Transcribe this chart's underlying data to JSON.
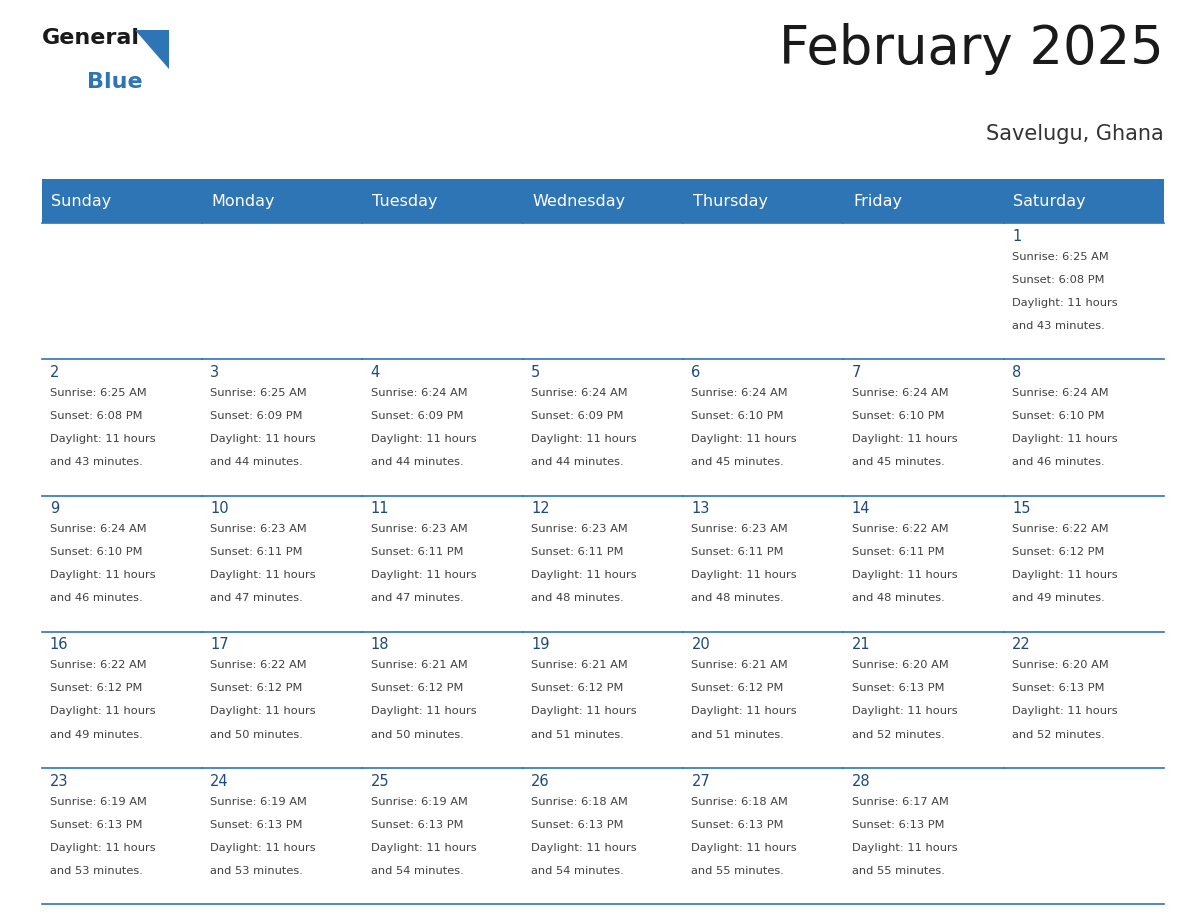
{
  "title": "February 2025",
  "subtitle": "Savelugu, Ghana",
  "header_bg": "#2E75B6",
  "header_text_color": "#FFFFFF",
  "days_of_week": [
    "Sunday",
    "Monday",
    "Tuesday",
    "Wednesday",
    "Thursday",
    "Friday",
    "Saturday"
  ],
  "day_number_color": "#1F497D",
  "text_color": "#404040",
  "line_color": "#2E75B6",
  "calendar_data": [
    [
      null,
      null,
      null,
      null,
      null,
      null,
      {
        "day": 1,
        "sunrise": "6:25 AM",
        "sunset": "6:08 PM",
        "daylight": "11 hours and 43 minutes"
      }
    ],
    [
      {
        "day": 2,
        "sunrise": "6:25 AM",
        "sunset": "6:08 PM",
        "daylight": "11 hours and 43 minutes"
      },
      {
        "day": 3,
        "sunrise": "6:25 AM",
        "sunset": "6:09 PM",
        "daylight": "11 hours and 44 minutes"
      },
      {
        "day": 4,
        "sunrise": "6:24 AM",
        "sunset": "6:09 PM",
        "daylight": "11 hours and 44 minutes"
      },
      {
        "day": 5,
        "sunrise": "6:24 AM",
        "sunset": "6:09 PM",
        "daylight": "11 hours and 44 minutes"
      },
      {
        "day": 6,
        "sunrise": "6:24 AM",
        "sunset": "6:10 PM",
        "daylight": "11 hours and 45 minutes"
      },
      {
        "day": 7,
        "sunrise": "6:24 AM",
        "sunset": "6:10 PM",
        "daylight": "11 hours and 45 minutes"
      },
      {
        "day": 8,
        "sunrise": "6:24 AM",
        "sunset": "6:10 PM",
        "daylight": "11 hours and 46 minutes"
      }
    ],
    [
      {
        "day": 9,
        "sunrise": "6:24 AM",
        "sunset": "6:10 PM",
        "daylight": "11 hours and 46 minutes"
      },
      {
        "day": 10,
        "sunrise": "6:23 AM",
        "sunset": "6:11 PM",
        "daylight": "11 hours and 47 minutes"
      },
      {
        "day": 11,
        "sunrise": "6:23 AM",
        "sunset": "6:11 PM",
        "daylight": "11 hours and 47 minutes"
      },
      {
        "day": 12,
        "sunrise": "6:23 AM",
        "sunset": "6:11 PM",
        "daylight": "11 hours and 48 minutes"
      },
      {
        "day": 13,
        "sunrise": "6:23 AM",
        "sunset": "6:11 PM",
        "daylight": "11 hours and 48 minutes"
      },
      {
        "day": 14,
        "sunrise": "6:22 AM",
        "sunset": "6:11 PM",
        "daylight": "11 hours and 48 minutes"
      },
      {
        "day": 15,
        "sunrise": "6:22 AM",
        "sunset": "6:12 PM",
        "daylight": "11 hours and 49 minutes"
      }
    ],
    [
      {
        "day": 16,
        "sunrise": "6:22 AM",
        "sunset": "6:12 PM",
        "daylight": "11 hours and 49 minutes"
      },
      {
        "day": 17,
        "sunrise": "6:22 AM",
        "sunset": "6:12 PM",
        "daylight": "11 hours and 50 minutes"
      },
      {
        "day": 18,
        "sunrise": "6:21 AM",
        "sunset": "6:12 PM",
        "daylight": "11 hours and 50 minutes"
      },
      {
        "day": 19,
        "sunrise": "6:21 AM",
        "sunset": "6:12 PM",
        "daylight": "11 hours and 51 minutes"
      },
      {
        "day": 20,
        "sunrise": "6:21 AM",
        "sunset": "6:12 PM",
        "daylight": "11 hours and 51 minutes"
      },
      {
        "day": 21,
        "sunrise": "6:20 AM",
        "sunset": "6:13 PM",
        "daylight": "11 hours and 52 minutes"
      },
      {
        "day": 22,
        "sunrise": "6:20 AM",
        "sunset": "6:13 PM",
        "daylight": "11 hours and 52 minutes"
      }
    ],
    [
      {
        "day": 23,
        "sunrise": "6:19 AM",
        "sunset": "6:13 PM",
        "daylight": "11 hours and 53 minutes"
      },
      {
        "day": 24,
        "sunrise": "6:19 AM",
        "sunset": "6:13 PM",
        "daylight": "11 hours and 53 minutes"
      },
      {
        "day": 25,
        "sunrise": "6:19 AM",
        "sunset": "6:13 PM",
        "daylight": "11 hours and 54 minutes"
      },
      {
        "day": 26,
        "sunrise": "6:18 AM",
        "sunset": "6:13 PM",
        "daylight": "11 hours and 54 minutes"
      },
      {
        "day": 27,
        "sunrise": "6:18 AM",
        "sunset": "6:13 PM",
        "daylight": "11 hours and 55 minutes"
      },
      {
        "day": 28,
        "sunrise": "6:17 AM",
        "sunset": "6:13 PM",
        "daylight": "11 hours and 55 minutes"
      },
      null
    ]
  ]
}
